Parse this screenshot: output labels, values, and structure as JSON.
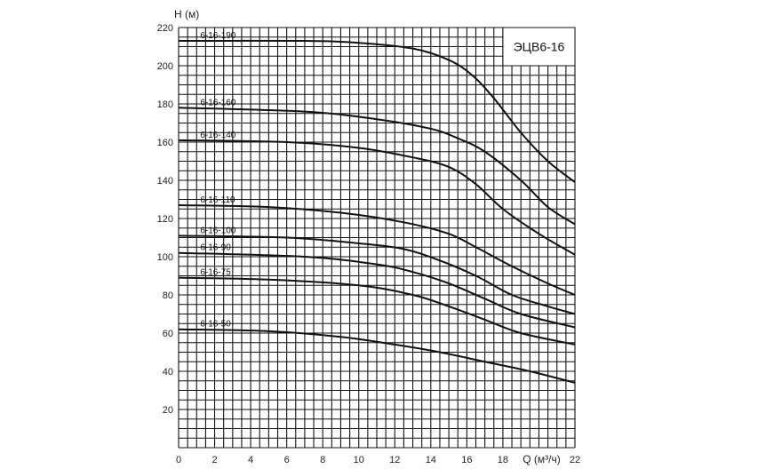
{
  "chart_data": {
    "type": "line",
    "title": "ЭЦВ6-16",
    "xlabel": "Q (м³/ч)",
    "ylabel": "H (м)",
    "xlim": [
      0,
      22
    ],
    "ylim": [
      0,
      220
    ],
    "xticks": [
      "0",
      "2",
      "4",
      "6",
      "8",
      "10",
      "12",
      "14",
      "16",
      "18",
      "22"
    ],
    "yticks": [
      "20",
      "40",
      "60",
      "80",
      "100",
      "120",
      "140",
      "160",
      "180",
      "200",
      "220"
    ],
    "grid": true,
    "grid_step_x": 0.5,
    "grid_step_y": 5,
    "line_color": "#111111",
    "series": [
      {
        "name": "6-16-190",
        "x": [
          0,
          7,
          10,
          13,
          15,
          16.3,
          17.5,
          19,
          20.5,
          22
        ],
        "y": [
          213,
          213,
          212,
          209,
          203,
          195,
          183,
          165,
          150,
          139
        ]
      },
      {
        "name": "6-16-160",
        "x": [
          0,
          7,
          11,
          14,
          15.5,
          17,
          19,
          20.5,
          22
        ],
        "y": [
          178,
          176,
          172,
          167,
          162,
          155,
          140,
          126,
          117
        ]
      },
      {
        "name": "6-16-140",
        "x": [
          0,
          6,
          10,
          13,
          15,
          16.5,
          18,
          20,
          22
        ],
        "y": [
          161,
          160,
          157,
          152,
          147,
          138,
          125,
          112,
          101
        ]
      },
      {
        "name": "6-16-110",
        "x": [
          0,
          5,
          9,
          12.5,
          15,
          16.5,
          18.5,
          20.5,
          22
        ],
        "y": [
          127,
          126,
          123,
          118,
          112,
          105,
          95,
          86,
          80
        ]
      },
      {
        "name": "6-16-100",
        "x": [
          0,
          6,
          10,
          12.5,
          14.5,
          16.5,
          18.5,
          20.5,
          22
        ],
        "y": [
          111,
          110,
          107,
          104,
          98,
          90,
          80,
          74,
          70
        ]
      },
      {
        "name": "6-16-90",
        "x": [
          0,
          7,
          11,
          13,
          15,
          17,
          19,
          22
        ],
        "y": [
          102,
          100,
          96,
          92,
          86,
          78,
          70,
          63
        ]
      },
      {
        "name": "6-16-75",
        "x": [
          0,
          5,
          10,
          13,
          15,
          17,
          19,
          22
        ],
        "y": [
          89,
          88,
          85,
          80,
          74,
          67,
          60,
          54
        ]
      },
      {
        "name": "6-16-50",
        "x": [
          0,
          5,
          9,
          12,
          14.5,
          17,
          19.5,
          22
        ],
        "y": [
          62,
          61,
          58,
          54,
          50,
          45,
          40,
          34
        ]
      }
    ]
  }
}
